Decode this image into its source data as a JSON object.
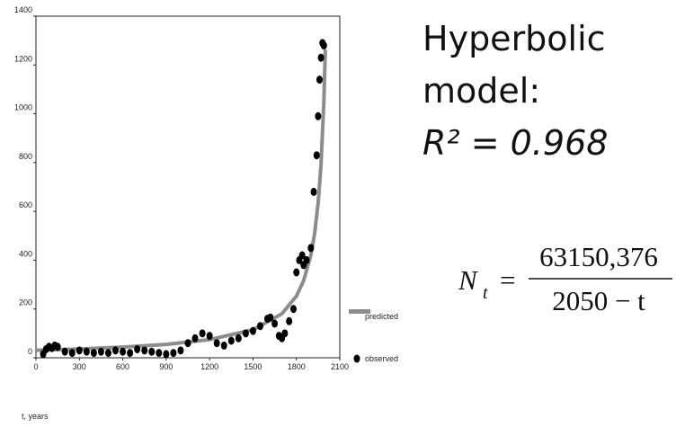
{
  "chart_data": {
    "type": "line",
    "xlabel": "t, years",
    "xlim": [
      0,
      2100
    ],
    "xticks": [
      0,
      300,
      600,
      900,
      1200,
      1500,
      1800,
      2100
    ],
    "ylim": [
      0,
      1400
    ],
    "yticks": [
      0,
      200,
      400,
      600,
      800,
      1000,
      1200,
      1400
    ],
    "legend": "right",
    "series": [
      {
        "name": "predicted",
        "color": "#8c8c8c",
        "style": "line",
        "x": [
          0,
          300,
          600,
          900,
          1200,
          1500,
          1700,
          1800,
          1850,
          1900,
          1925,
          1950,
          1970,
          1990,
          2000
        ],
        "values": [
          30.8,
          36.1,
          43.6,
          54.9,
          74.3,
          114.8,
          180.4,
          252.6,
          315.8,
          421.0,
          505.2,
          631.5,
          789.4,
          1052.5,
          1263.0
        ]
      },
      {
        "name": "observed",
        "color": "#000000",
        "style": "points",
        "x": [
          50,
          70,
          90,
          110,
          130,
          150,
          200,
          250,
          300,
          350,
          400,
          450,
          500,
          550,
          600,
          650,
          700,
          750,
          800,
          850,
          900,
          950,
          1000,
          1050,
          1100,
          1150,
          1200,
          1250,
          1300,
          1350,
          1400,
          1450,
          1500,
          1550,
          1600,
          1620,
          1650,
          1680,
          1700,
          1720,
          1750,
          1780,
          1800,
          1820,
          1840,
          1850,
          1870,
          1900,
          1920,
          1940,
          1950,
          1960,
          1970,
          1980,
          1990
        ],
        "values": [
          15,
          35,
          45,
          40,
          50,
          45,
          25,
          20,
          30,
          25,
          20,
          25,
          20,
          30,
          25,
          20,
          35,
          30,
          25,
          20,
          15,
          20,
          30,
          60,
          80,
          100,
          90,
          60,
          50,
          70,
          80,
          100,
          110,
          130,
          160,
          165,
          140,
          90,
          80,
          100,
          150,
          200,
          350,
          400,
          420,
          380,
          400,
          450,
          680,
          830,
          990,
          1140,
          1230,
          1290,
          1280
        ]
      }
    ],
    "annotations": {
      "model_lines": [
        "Hyperbolic",
        "model:"
      ],
      "r2": "R² = 0.968",
      "formula": {
        "lhs": "N",
        "lhs_sub": "t",
        "equals": "=",
        "numerator": "63150,376",
        "denominator": "2050 − t"
      }
    }
  }
}
